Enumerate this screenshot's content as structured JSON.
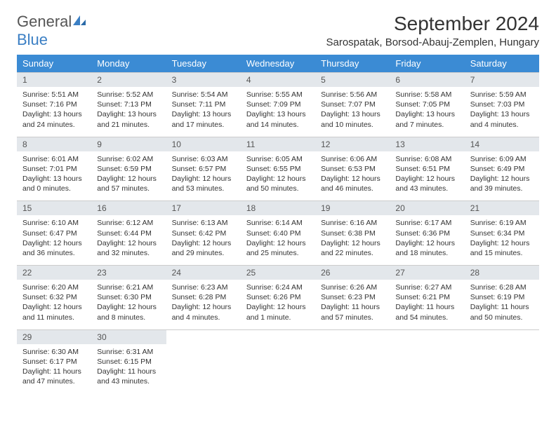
{
  "brand": {
    "name_a": "General",
    "name_b": "Blue"
  },
  "title": "September 2024",
  "location": "Sarospatak, Borsod-Abauj-Zemplen, Hungary",
  "colors": {
    "header_bg": "#3b8bd4",
    "header_fg": "#ffffff",
    "daynum_bg": "#e3e7eb",
    "border": "#cccccc",
    "brand_blue": "#3b7fc4"
  },
  "columns": [
    "Sunday",
    "Monday",
    "Tuesday",
    "Wednesday",
    "Thursday",
    "Friday",
    "Saturday"
  ],
  "weeks": [
    [
      {
        "n": "1",
        "sr": "Sunrise: 5:51 AM",
        "ss": "Sunset: 7:16 PM",
        "d1": "Daylight: 13 hours",
        "d2": "and 24 minutes."
      },
      {
        "n": "2",
        "sr": "Sunrise: 5:52 AM",
        "ss": "Sunset: 7:13 PM",
        "d1": "Daylight: 13 hours",
        "d2": "and 21 minutes."
      },
      {
        "n": "3",
        "sr": "Sunrise: 5:54 AM",
        "ss": "Sunset: 7:11 PM",
        "d1": "Daylight: 13 hours",
        "d2": "and 17 minutes."
      },
      {
        "n": "4",
        "sr": "Sunrise: 5:55 AM",
        "ss": "Sunset: 7:09 PM",
        "d1": "Daylight: 13 hours",
        "d2": "and 14 minutes."
      },
      {
        "n": "5",
        "sr": "Sunrise: 5:56 AM",
        "ss": "Sunset: 7:07 PM",
        "d1": "Daylight: 13 hours",
        "d2": "and 10 minutes."
      },
      {
        "n": "6",
        "sr": "Sunrise: 5:58 AM",
        "ss": "Sunset: 7:05 PM",
        "d1": "Daylight: 13 hours",
        "d2": "and 7 minutes."
      },
      {
        "n": "7",
        "sr": "Sunrise: 5:59 AM",
        "ss": "Sunset: 7:03 PM",
        "d1": "Daylight: 13 hours",
        "d2": "and 4 minutes."
      }
    ],
    [
      {
        "n": "8",
        "sr": "Sunrise: 6:01 AM",
        "ss": "Sunset: 7:01 PM",
        "d1": "Daylight: 13 hours",
        "d2": "and 0 minutes."
      },
      {
        "n": "9",
        "sr": "Sunrise: 6:02 AM",
        "ss": "Sunset: 6:59 PM",
        "d1": "Daylight: 12 hours",
        "d2": "and 57 minutes."
      },
      {
        "n": "10",
        "sr": "Sunrise: 6:03 AM",
        "ss": "Sunset: 6:57 PM",
        "d1": "Daylight: 12 hours",
        "d2": "and 53 minutes."
      },
      {
        "n": "11",
        "sr": "Sunrise: 6:05 AM",
        "ss": "Sunset: 6:55 PM",
        "d1": "Daylight: 12 hours",
        "d2": "and 50 minutes."
      },
      {
        "n": "12",
        "sr": "Sunrise: 6:06 AM",
        "ss": "Sunset: 6:53 PM",
        "d1": "Daylight: 12 hours",
        "d2": "and 46 minutes."
      },
      {
        "n": "13",
        "sr": "Sunrise: 6:08 AM",
        "ss": "Sunset: 6:51 PM",
        "d1": "Daylight: 12 hours",
        "d2": "and 43 minutes."
      },
      {
        "n": "14",
        "sr": "Sunrise: 6:09 AM",
        "ss": "Sunset: 6:49 PM",
        "d1": "Daylight: 12 hours",
        "d2": "and 39 minutes."
      }
    ],
    [
      {
        "n": "15",
        "sr": "Sunrise: 6:10 AM",
        "ss": "Sunset: 6:47 PM",
        "d1": "Daylight: 12 hours",
        "d2": "and 36 minutes."
      },
      {
        "n": "16",
        "sr": "Sunrise: 6:12 AM",
        "ss": "Sunset: 6:44 PM",
        "d1": "Daylight: 12 hours",
        "d2": "and 32 minutes."
      },
      {
        "n": "17",
        "sr": "Sunrise: 6:13 AM",
        "ss": "Sunset: 6:42 PM",
        "d1": "Daylight: 12 hours",
        "d2": "and 29 minutes."
      },
      {
        "n": "18",
        "sr": "Sunrise: 6:14 AM",
        "ss": "Sunset: 6:40 PM",
        "d1": "Daylight: 12 hours",
        "d2": "and 25 minutes."
      },
      {
        "n": "19",
        "sr": "Sunrise: 6:16 AM",
        "ss": "Sunset: 6:38 PM",
        "d1": "Daylight: 12 hours",
        "d2": "and 22 minutes."
      },
      {
        "n": "20",
        "sr": "Sunrise: 6:17 AM",
        "ss": "Sunset: 6:36 PM",
        "d1": "Daylight: 12 hours",
        "d2": "and 18 minutes."
      },
      {
        "n": "21",
        "sr": "Sunrise: 6:19 AM",
        "ss": "Sunset: 6:34 PM",
        "d1": "Daylight: 12 hours",
        "d2": "and 15 minutes."
      }
    ],
    [
      {
        "n": "22",
        "sr": "Sunrise: 6:20 AM",
        "ss": "Sunset: 6:32 PM",
        "d1": "Daylight: 12 hours",
        "d2": "and 11 minutes."
      },
      {
        "n": "23",
        "sr": "Sunrise: 6:21 AM",
        "ss": "Sunset: 6:30 PM",
        "d1": "Daylight: 12 hours",
        "d2": "and 8 minutes."
      },
      {
        "n": "24",
        "sr": "Sunrise: 6:23 AM",
        "ss": "Sunset: 6:28 PM",
        "d1": "Daylight: 12 hours",
        "d2": "and 4 minutes."
      },
      {
        "n": "25",
        "sr": "Sunrise: 6:24 AM",
        "ss": "Sunset: 6:26 PM",
        "d1": "Daylight: 12 hours",
        "d2": "and 1 minute."
      },
      {
        "n": "26",
        "sr": "Sunrise: 6:26 AM",
        "ss": "Sunset: 6:23 PM",
        "d1": "Daylight: 11 hours",
        "d2": "and 57 minutes."
      },
      {
        "n": "27",
        "sr": "Sunrise: 6:27 AM",
        "ss": "Sunset: 6:21 PM",
        "d1": "Daylight: 11 hours",
        "d2": "and 54 minutes."
      },
      {
        "n": "28",
        "sr": "Sunrise: 6:28 AM",
        "ss": "Sunset: 6:19 PM",
        "d1": "Daylight: 11 hours",
        "d2": "and 50 minutes."
      }
    ],
    [
      {
        "n": "29",
        "sr": "Sunrise: 6:30 AM",
        "ss": "Sunset: 6:17 PM",
        "d1": "Daylight: 11 hours",
        "d2": "and 47 minutes."
      },
      {
        "n": "30",
        "sr": "Sunrise: 6:31 AM",
        "ss": "Sunset: 6:15 PM",
        "d1": "Daylight: 11 hours",
        "d2": "and 43 minutes."
      },
      {
        "empty": true
      },
      {
        "empty": true
      },
      {
        "empty": true
      },
      {
        "empty": true
      },
      {
        "empty": true
      }
    ]
  ]
}
